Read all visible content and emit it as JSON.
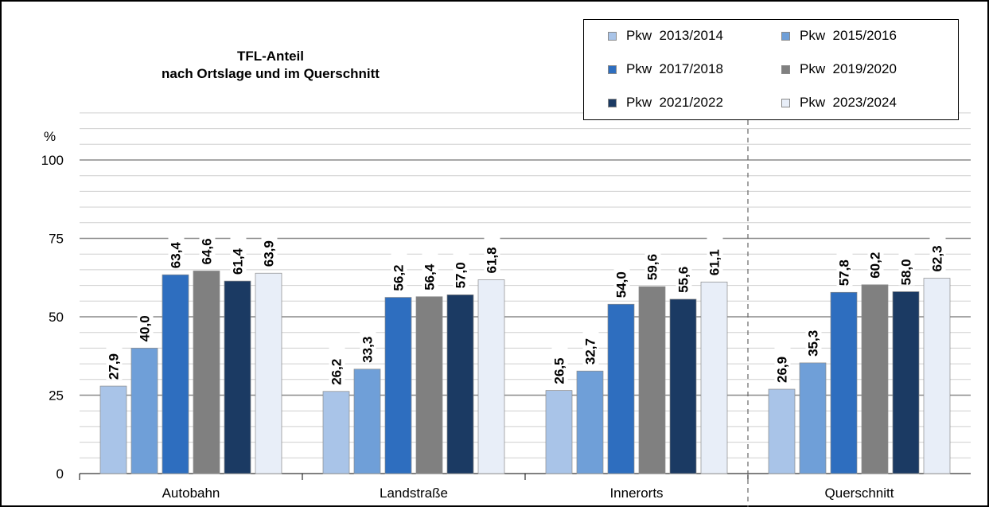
{
  "chart_data": {
    "type": "bar",
    "title": "TFL-Anteil",
    "subtitle": "nach Ortslage und im Querschnitt",
    "ylabel": "%",
    "ylim": [
      0,
      100
    ],
    "yticks": [
      0,
      25,
      50,
      75,
      100
    ],
    "grid": true,
    "legend_position": "top-right",
    "categories": [
      "Autobahn",
      "Landstraße",
      "Innerorts",
      "Querschnitt"
    ],
    "series": [
      {
        "name": "Pkw  2013/2014",
        "color": "#a9c4e8",
        "values": [
          27.9,
          26.2,
          26.5,
          26.9
        ],
        "labels": [
          "27,9",
          "26,2",
          "26,5",
          "26,9"
        ]
      },
      {
        "name": "Pkw  2015/2016",
        "color": "#6f9fd8",
        "values": [
          40.0,
          33.3,
          32.7,
          35.3
        ],
        "labels": [
          "40,0",
          "33,3",
          "32,7",
          "35,3"
        ]
      },
      {
        "name": "Pkw  2017/2018",
        "color": "#2e6ebf",
        "values": [
          63.4,
          56.2,
          54.0,
          57.8
        ],
        "labels": [
          "63,4",
          "56,2",
          "54,0",
          "57,8"
        ]
      },
      {
        "name": "Pkw  2019/2020",
        "color": "#808080",
        "values": [
          64.6,
          56.4,
          59.6,
          60.2
        ],
        "labels": [
          "64,6",
          "56,4",
          "59,6",
          "60,2"
        ]
      },
      {
        "name": "Pkw  2021/2022",
        "color": "#1b3a63",
        "values": [
          61.4,
          57.0,
          55.6,
          58.0
        ],
        "labels": [
          "61,4",
          "57,0",
          "55,6",
          "58,0"
        ]
      },
      {
        "name": "Pkw  2023/2024",
        "color": "#e8eef8",
        "values": [
          63.9,
          61.8,
          61.1,
          62.3
        ],
        "labels": [
          "63,9",
          "61,8",
          "61,1",
          "62,3"
        ]
      }
    ]
  }
}
